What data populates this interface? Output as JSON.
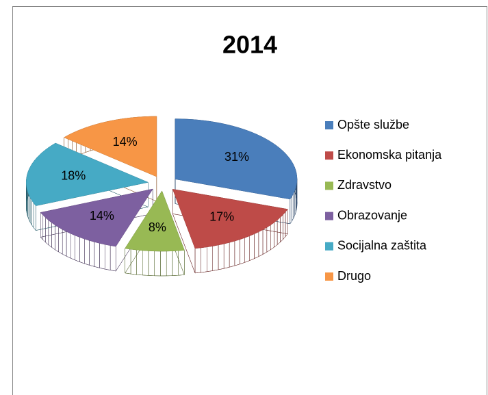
{
  "chart_data": {
    "type": "pie",
    "title": "2014",
    "categories": [
      "Opšte službe",
      "Ekonomska pitanja",
      "Zdravstvo",
      "Obrazovanje",
      "Socijalna zaštita",
      "Drugo"
    ],
    "values": [
      31,
      17,
      8,
      14,
      18,
      14
    ],
    "value_labels": [
      "31%",
      "17%",
      "8%",
      "14%",
      "18%",
      "14%"
    ],
    "colors": [
      "#4a7ebb",
      "#be4b48",
      "#98b954",
      "#7d60a0",
      "#46aac5",
      "#f79646"
    ],
    "legend": "right"
  }
}
